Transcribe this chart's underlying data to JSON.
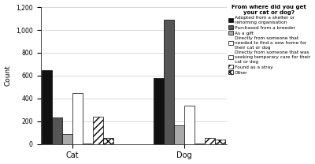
{
  "categories": [
    "Cat",
    "Dog"
  ],
  "series": [
    {
      "label": "Adopted from a shelter or\nrehoming organisation",
      "color": "#111111",
      "hatch": null,
      "values": [
        650,
        580
      ]
    },
    {
      "label": "Purchased from a breeder",
      "color": "#555555",
      "hatch": null,
      "values": [
        230,
        1090
      ]
    },
    {
      "label": "As a gift",
      "color": "#aaaaaa",
      "hatch": null,
      "values": [
        90,
        165
      ]
    },
    {
      "label": "Directly from someone that\nneeded to find a new home for\ntheir cat or dog",
      "color": "#ffffff",
      "hatch": null,
      "values": [
        445,
        340
      ]
    },
    {
      "label": "Directly from someone that was\nseeking temporary care for their\ncat or dog",
      "color": "#ffffff",
      "hatch": null,
      "values": [
        8,
        8
      ]
    },
    {
      "label": "Found as a stray",
      "color": "#ffffff",
      "hatch": "////",
      "values": [
        238,
        55
      ]
    },
    {
      "label": "Other",
      "color": "#ffffff",
      "hatch": "xxxx",
      "values": [
        55,
        38
      ]
    }
  ],
  "ylabel": "Count",
  "ylim": [
    0,
    1200
  ],
  "yticks": [
    0,
    200,
    400,
    600,
    800,
    1000,
    1200
  ],
  "ytick_labels": [
    "0",
    "200",
    "400",
    "600",
    "800",
    "1,000",
    "1,200"
  ],
  "legend_title": "From where did you get\nyour cat or dog?",
  "background_color": "#ffffff",
  "edge_color": "#000000"
}
